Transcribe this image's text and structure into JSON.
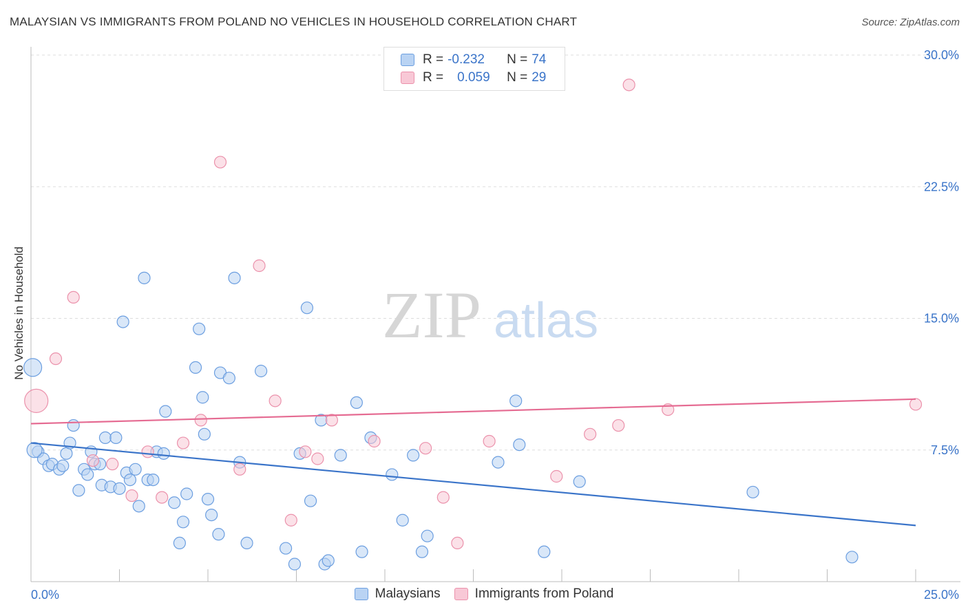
{
  "title": "MALAYSIAN VS IMMIGRANTS FROM POLAND NO VEHICLES IN HOUSEHOLD CORRELATION CHART",
  "source": "Source: ZipAtlas.com",
  "watermark": {
    "zip": "ZIP",
    "atlas": "atlas"
  },
  "legend": {
    "r_label": "R =",
    "n_label": "N =",
    "rows": [
      {
        "r": "-0.232",
        "n": "74"
      },
      {
        "r": "0.059",
        "n": "29"
      }
    ]
  },
  "colors": {
    "blue_fill": "#b9d3f3",
    "blue_stroke": "#6b9ee0",
    "blue_line": "#3a74c9",
    "pink_fill": "#f8c8d6",
    "pink_stroke": "#eb91ab",
    "pink_line": "#e56b92",
    "axis_text": "#3a74c9",
    "grid": "#dddddd"
  },
  "chart_data": {
    "type": "scatter",
    "title": "MALAYSIAN VS IMMIGRANTS FROM POLAND NO VEHICLES IN HOUSEHOLD CORRELATION CHART",
    "xlabel": "",
    "ylabel": "No Vehicles in Household",
    "xlim": [
      0,
      25
    ],
    "ylim": [
      0,
      30
    ],
    "x_tick_labels": [
      "0.0%",
      "25.0%"
    ],
    "y_tick_labels": [
      "7.5%",
      "15.0%",
      "22.5%",
      "30.0%"
    ],
    "y_ticks": [
      7.5,
      15,
      22.5,
      30
    ],
    "grid": true,
    "legend_position": "top-center",
    "series": [
      {
        "name": "Malaysians",
        "r": -0.232,
        "n": 74,
        "trend": [
          [
            0,
            7.9
          ],
          [
            25,
            3.2
          ]
        ],
        "points": [
          [
            0.05,
            12.2
          ],
          [
            0.2,
            7.4
          ],
          [
            0.35,
            7.0
          ],
          [
            0.5,
            6.6
          ],
          [
            0.6,
            6.7
          ],
          [
            0.8,
            6.4
          ],
          [
            0.9,
            6.6
          ],
          [
            1.0,
            7.3
          ],
          [
            1.1,
            7.9
          ],
          [
            1.2,
            8.9
          ],
          [
            1.35,
            5.2
          ],
          [
            1.5,
            6.4
          ],
          [
            1.6,
            6.1
          ],
          [
            1.7,
            7.4
          ],
          [
            1.8,
            6.7
          ],
          [
            1.95,
            6.7
          ],
          [
            2.0,
            5.5
          ],
          [
            2.1,
            8.2
          ],
          [
            2.25,
            5.4
          ],
          [
            2.4,
            8.2
          ],
          [
            2.5,
            5.3
          ],
          [
            2.6,
            14.8
          ],
          [
            2.7,
            6.2
          ],
          [
            2.8,
            5.8
          ],
          [
            2.95,
            6.4
          ],
          [
            3.05,
            4.3
          ],
          [
            3.2,
            17.3
          ],
          [
            3.3,
            5.8
          ],
          [
            3.45,
            5.8
          ],
          [
            3.55,
            7.4
          ],
          [
            3.75,
            7.3
          ],
          [
            3.8,
            9.7
          ],
          [
            4.05,
            4.5
          ],
          [
            4.2,
            2.2
          ],
          [
            4.3,
            3.4
          ],
          [
            4.4,
            5.0
          ],
          [
            4.65,
            12.2
          ],
          [
            4.75,
            14.4
          ],
          [
            4.85,
            10.5
          ],
          [
            4.9,
            8.4
          ],
          [
            5.0,
            4.7
          ],
          [
            5.1,
            3.8
          ],
          [
            5.3,
            2.7
          ],
          [
            5.35,
            11.9
          ],
          [
            5.6,
            11.6
          ],
          [
            5.75,
            17.3
          ],
          [
            5.9,
            6.8
          ],
          [
            6.1,
            2.2
          ],
          [
            6.5,
            12.0
          ],
          [
            7.2,
            1.9
          ],
          [
            7.45,
            1.0
          ],
          [
            7.6,
            7.3
          ],
          [
            7.8,
            15.6
          ],
          [
            7.9,
            4.6
          ],
          [
            8.2,
            9.2
          ],
          [
            8.3,
            1.0
          ],
          [
            8.4,
            1.2
          ],
          [
            8.75,
            7.2
          ],
          [
            9.2,
            10.2
          ],
          [
            9.35,
            1.7
          ],
          [
            9.6,
            8.2
          ],
          [
            10.2,
            6.1
          ],
          [
            10.5,
            3.5
          ],
          [
            10.8,
            7.2
          ],
          [
            11.05,
            1.7
          ],
          [
            11.2,
            2.6
          ],
          [
            13.2,
            6.8
          ],
          [
            13.7,
            10.3
          ],
          [
            13.8,
            7.8
          ],
          [
            14.5,
            1.7
          ],
          [
            15.5,
            5.7
          ],
          [
            20.4,
            5.1
          ],
          [
            23.2,
            1.4
          ],
          [
            0.1,
            7.5
          ]
        ]
      },
      {
        "name": "Immigrants from Poland",
        "r": 0.059,
        "n": 29,
        "trend": [
          [
            0,
            9.0
          ],
          [
            25,
            10.4
          ]
        ],
        "points": [
          [
            0.15,
            10.3
          ],
          [
            0.7,
            12.7
          ],
          [
            1.2,
            16.2
          ],
          [
            1.75,
            6.9
          ],
          [
            2.3,
            6.7
          ],
          [
            2.85,
            4.9
          ],
          [
            3.3,
            7.4
          ],
          [
            3.7,
            4.8
          ],
          [
            4.3,
            7.9
          ],
          [
            4.8,
            9.2
          ],
          [
            5.35,
            23.9
          ],
          [
            5.9,
            6.4
          ],
          [
            6.45,
            18.0
          ],
          [
            6.9,
            10.3
          ],
          [
            7.35,
            3.5
          ],
          [
            7.75,
            7.4
          ],
          [
            8.1,
            7.0
          ],
          [
            8.5,
            9.2
          ],
          [
            9.7,
            8.0
          ],
          [
            11.15,
            7.6
          ],
          [
            11.65,
            4.8
          ],
          [
            12.05,
            2.2
          ],
          [
            12.95,
            8.0
          ],
          [
            14.85,
            6.0
          ],
          [
            15.8,
            8.4
          ],
          [
            16.6,
            8.9
          ],
          [
            16.9,
            28.3
          ],
          [
            18.0,
            9.8
          ],
          [
            25.0,
            10.1
          ]
        ]
      }
    ]
  },
  "bottom_legend": [
    "Malaysians",
    "Immigrants from Poland"
  ]
}
